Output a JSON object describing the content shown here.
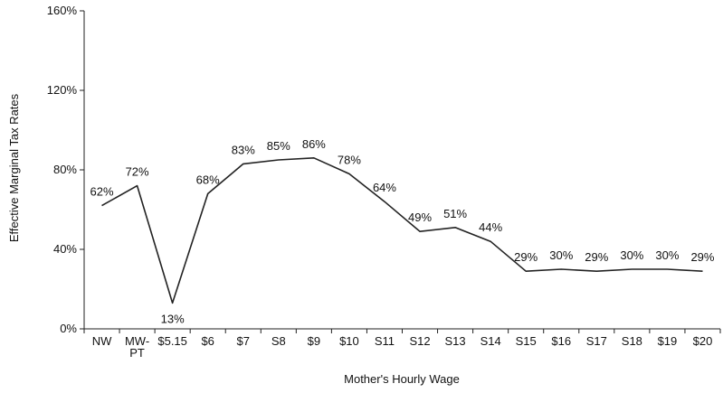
{
  "chart_data": {
    "type": "line",
    "title": "",
    "xlabel": "Mother's Hourly Wage",
    "ylabel": "Effective Marginal Tax Rates",
    "ylim": [
      0,
      160
    ],
    "yticks": [
      0,
      40,
      80,
      120,
      160
    ],
    "ytick_labels": [
      "0%",
      "40%",
      "80%",
      "120%",
      "160%"
    ],
    "grid": false,
    "categories": [
      [
        "NW"
      ],
      [
        "MW-",
        "PT"
      ],
      [
        "$5.15"
      ],
      [
        "$6"
      ],
      [
        "$7"
      ],
      [
        "S8"
      ],
      [
        "$9"
      ],
      [
        "$10"
      ],
      [
        "S11"
      ],
      [
        "S12"
      ],
      [
        "S13"
      ],
      [
        "S14"
      ],
      [
        "S15"
      ],
      [
        "$16"
      ],
      [
        "S17"
      ],
      [
        "S18"
      ],
      [
        "$19"
      ],
      [
        "$20"
      ]
    ],
    "series": [
      {
        "color": "#222222",
        "values": [
          62,
          72,
          13,
          68,
          83,
          85,
          86,
          78,
          64,
          49,
          51,
          44,
          29,
          30,
          29,
          30,
          30,
          29
        ],
        "labels": [
          "62%",
          "72%",
          "13%",
          "68%",
          "83%",
          "85%",
          "86%",
          "78%",
          "64%",
          "49%",
          "51%",
          "44%",
          "29%",
          "30%",
          "29%",
          "30%",
          "30%",
          "29%"
        ]
      }
    ]
  }
}
